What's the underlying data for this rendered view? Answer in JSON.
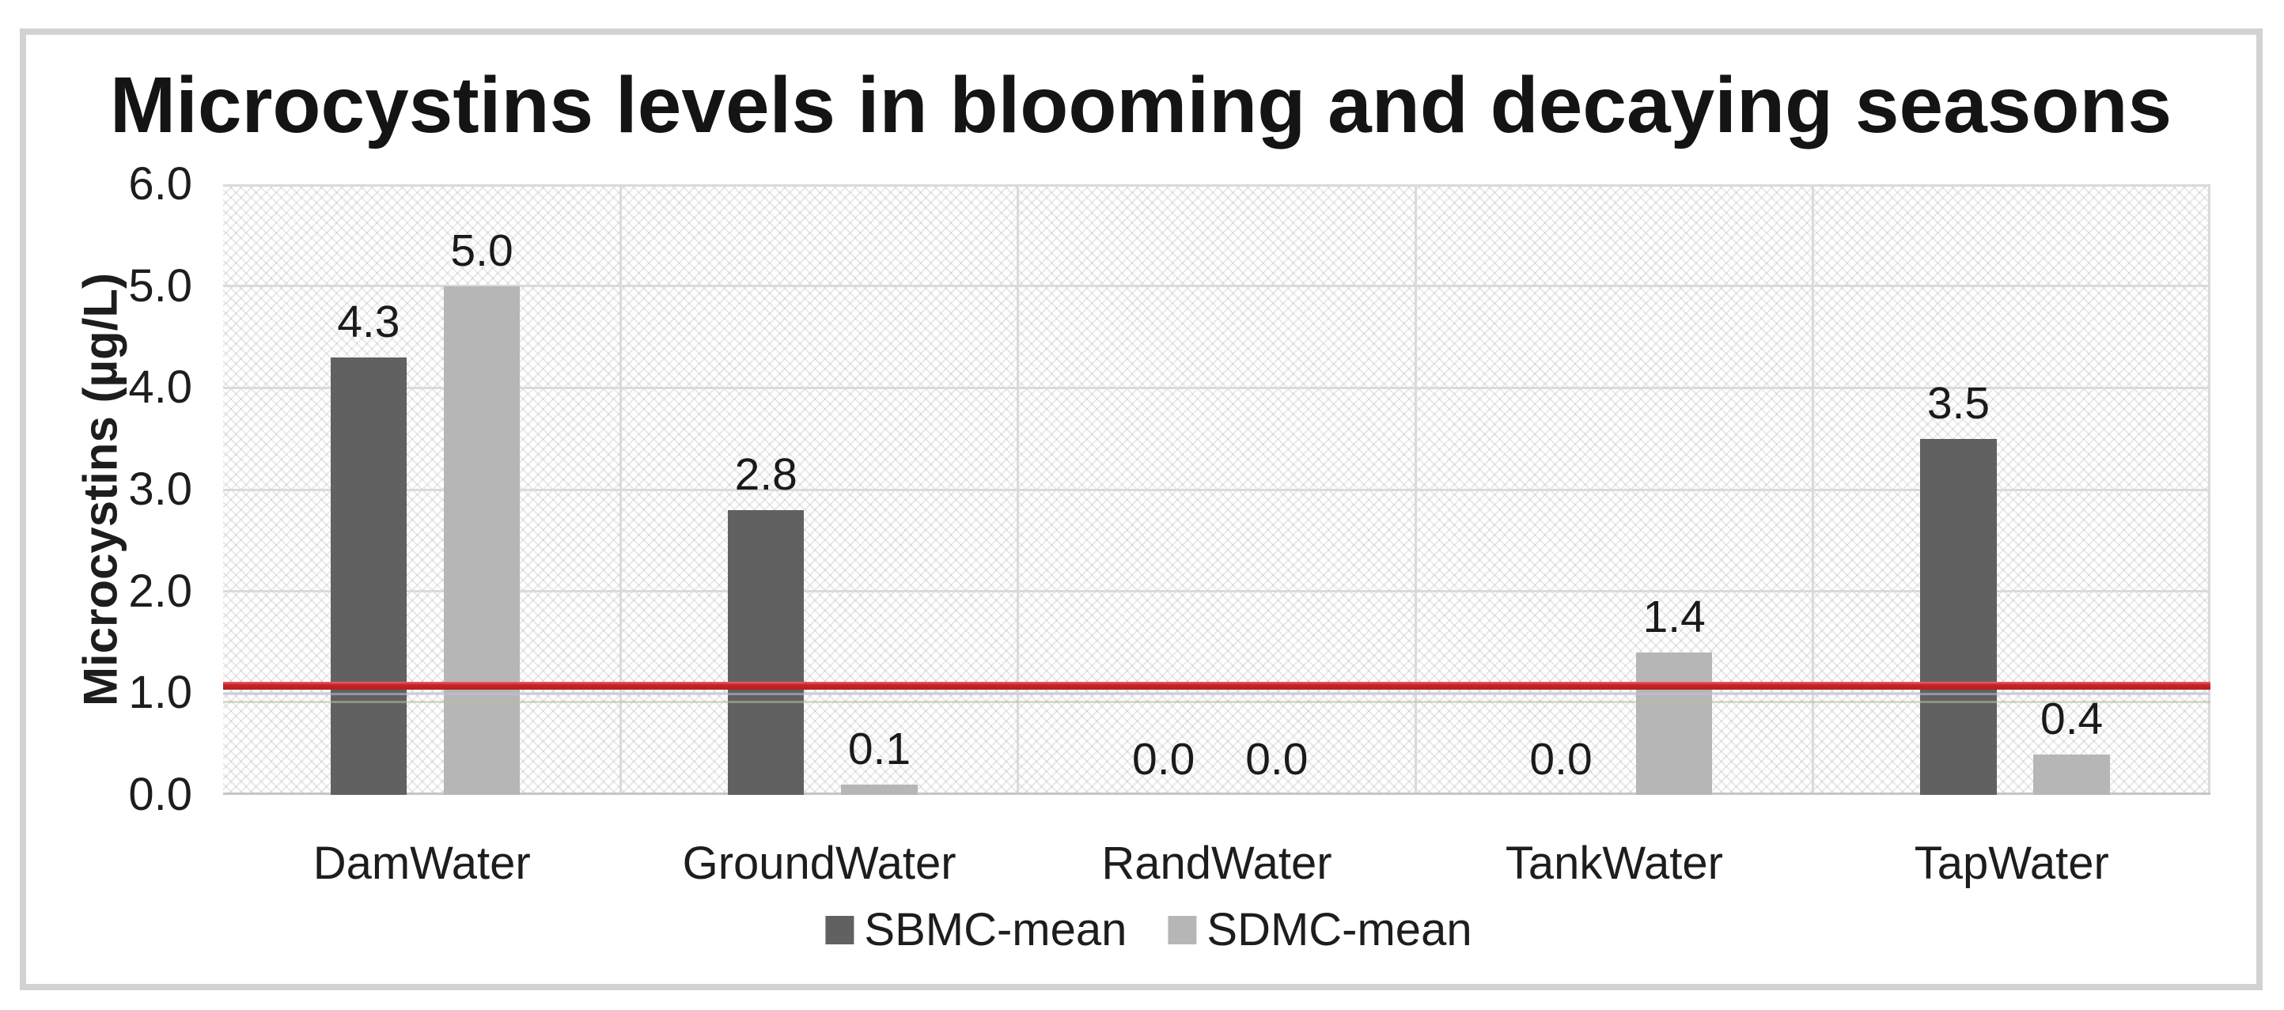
{
  "chart_data": {
    "type": "bar",
    "title": "Microcystins levels in blooming and decaying seasons",
    "ylabel": "Microcystins (µg/L)",
    "xlabel": "",
    "categories": [
      "DamWater",
      "GroundWater",
      "RandWater",
      "TankWater",
      "TapWater"
    ],
    "series": [
      {
        "name": "SBMC-mean",
        "color": "#616161",
        "values": [
          4.3,
          2.8,
          0.0,
          0.0,
          3.5
        ],
        "labels": [
          "4.3",
          "2.8",
          "0.0",
          "0.0",
          "3.5"
        ]
      },
      {
        "name": "SDMC-mean",
        "color": "#b6b6b6",
        "values": [
          5.0,
          0.1,
          0.0,
          1.4,
          0.4
        ],
        "labels": [
          "5.0",
          "0.1",
          "0.0",
          "1.4",
          "0.4"
        ]
      }
    ],
    "ylim": [
      0,
      6
    ],
    "ytick_step": 1,
    "ytick_labels": [
      "0.0",
      "1.0",
      "2.0",
      "3.0",
      "4.0",
      "5.0",
      "6.0"
    ],
    "grid": "horizontal gridlines every 1.0 plus vertical category separators",
    "plot_background": "light gray diagonal crosshatch pattern on white",
    "legend_position": "bottom center",
    "data_labels_shown": true,
    "reference_line": {
      "value": 1.07,
      "color": "#cb2027"
    },
    "faint_reference_lines": [
      {
        "value": 0.99,
        "color": "#b9c4de"
      },
      {
        "value": 0.91,
        "color": "#b7bfa0"
      }
    ]
  }
}
